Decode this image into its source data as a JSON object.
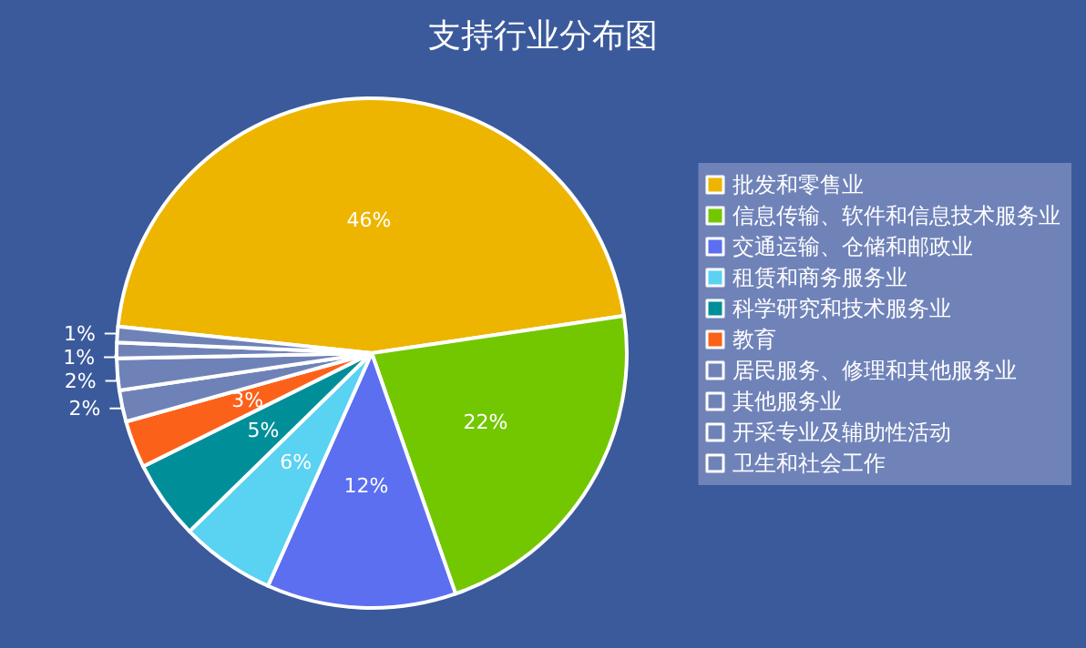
{
  "chart_data": {
    "type": "pie",
    "title": "支持行业分布图",
    "categories": [
      "批发和零售业",
      "信息传输、软件和信息技术服务业",
      "交通运输、仓储和邮政业",
      "租赁和商务服务业",
      "科学研究和技术服务业",
      "教育",
      "居民服务、修理和其他服务业",
      "其他服务业",
      "开采专业及辅助性活动",
      "卫生和社会工作"
    ],
    "values": [
      46,
      22,
      12,
      6,
      5,
      3,
      2,
      2,
      1,
      1
    ],
    "colors": [
      "#edb500",
      "#73c700",
      "#5b6ff0",
      "#5ad2f2",
      "#008f98",
      "#fc6119",
      "#6f82b8",
      "#6f82b8",
      "#6f82b8",
      "#6f82b8"
    ],
    "value_labels": [
      "46%",
      "22%",
      "12%",
      "6%",
      "5%",
      "3%",
      "2%",
      "2%",
      "1%",
      "1%"
    ],
    "legend": "right"
  }
}
